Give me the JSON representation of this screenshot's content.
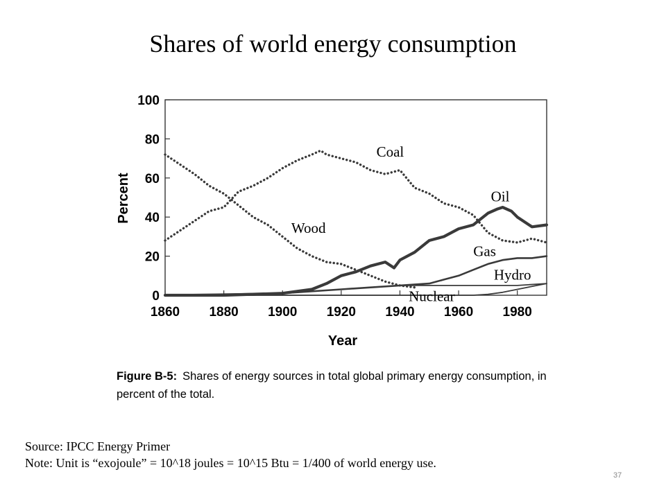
{
  "slide": {
    "title": "Shares of world energy consumption",
    "source": "Source: IPCC Energy Primer",
    "note": "Note: Unit is “exojoule” = 10^18 joules = 10^15 Btu = 1/400 of world energy use.",
    "page_number": "37"
  },
  "figure": {
    "label": "Figure B-5:",
    "text": "Shares of energy sources in total global primary energy consumption, in percent of the total."
  },
  "chart_data": {
    "type": "line",
    "title": "",
    "xlabel": "Year",
    "ylabel": "Percent",
    "xlim": [
      1860,
      1990
    ],
    "ylim": [
      0,
      100
    ],
    "xticks": [
      1860,
      1880,
      1900,
      1920,
      1940,
      1960,
      1980
    ],
    "yticks": [
      0,
      20,
      40,
      60,
      80,
      100
    ],
    "grid": false,
    "legend": "inline labels",
    "series": [
      {
        "name": "Coal",
        "style": "dotted",
        "x": [
          1860,
          1865,
          1870,
          1875,
          1880,
          1885,
          1890,
          1895,
          1900,
          1905,
          1910,
          1913,
          1915,
          1920,
          1925,
          1930,
          1935,
          1940,
          1945,
          1950,
          1955,
          1960,
          1965,
          1970,
          1975,
          1980,
          1985,
          1990
        ],
        "y": [
          28,
          33,
          38,
          43,
          45,
          53,
          56,
          60,
          65,
          69,
          72,
          74,
          72,
          70,
          68,
          64,
          62,
          64,
          55,
          52,
          47,
          45,
          41,
          32,
          28,
          27,
          29,
          27
        ]
      },
      {
        "name": "Wood",
        "style": "dotted",
        "x": [
          1860,
          1865,
          1870,
          1875,
          1880,
          1885,
          1890,
          1895,
          1900,
          1905,
          1910,
          1915,
          1920,
          1925,
          1930,
          1935,
          1940,
          1945
        ],
        "y": [
          72,
          67,
          62,
          56,
          52,
          46,
          40,
          36,
          30,
          24,
          20,
          17,
          16,
          13,
          10,
          7,
          5,
          4
        ]
      },
      {
        "name": "Oil",
        "style": "thick",
        "x": [
          1860,
          1880,
          1900,
          1910,
          1915,
          1920,
          1925,
          1930,
          1935,
          1938,
          1940,
          1945,
          1950,
          1955,
          1960,
          1965,
          1970,
          1973,
          1975,
          1978,
          1980,
          1985,
          1990
        ],
        "y": [
          0,
          0,
          1,
          3,
          6,
          10,
          12,
          15,
          17,
          14,
          18,
          22,
          28,
          30,
          34,
          36,
          42,
          44,
          45,
          43,
          40,
          35,
          36
        ]
      },
      {
        "name": "Gas",
        "style": "medium",
        "x": [
          1860,
          1900,
          1920,
          1930,
          1940,
          1950,
          1955,
          1960,
          1965,
          1970,
          1975,
          1980,
          1985,
          1990
        ],
        "y": [
          0,
          1,
          3,
          4,
          5,
          6,
          8,
          10,
          13,
          16,
          18,
          19,
          19,
          20
        ]
      },
      {
        "name": "Hydro",
        "style": "thin",
        "x": [
          1860,
          1890,
          1900,
          1910,
          1920,
          1930,
          1940,
          1950,
          1960,
          1970,
          1980,
          1990
        ],
        "y": [
          0,
          0,
          1,
          2,
          3,
          4,
          5,
          5,
          5,
          5,
          5,
          6
        ]
      },
      {
        "name": "Nuclear",
        "style": "thin",
        "x": [
          1860,
          1955,
          1960,
          1965,
          1970,
          1975,
          1980,
          1985,
          1990
        ],
        "y": [
          0,
          0,
          0,
          0,
          0.5,
          1.5,
          3,
          4.5,
          6
        ]
      }
    ]
  }
}
